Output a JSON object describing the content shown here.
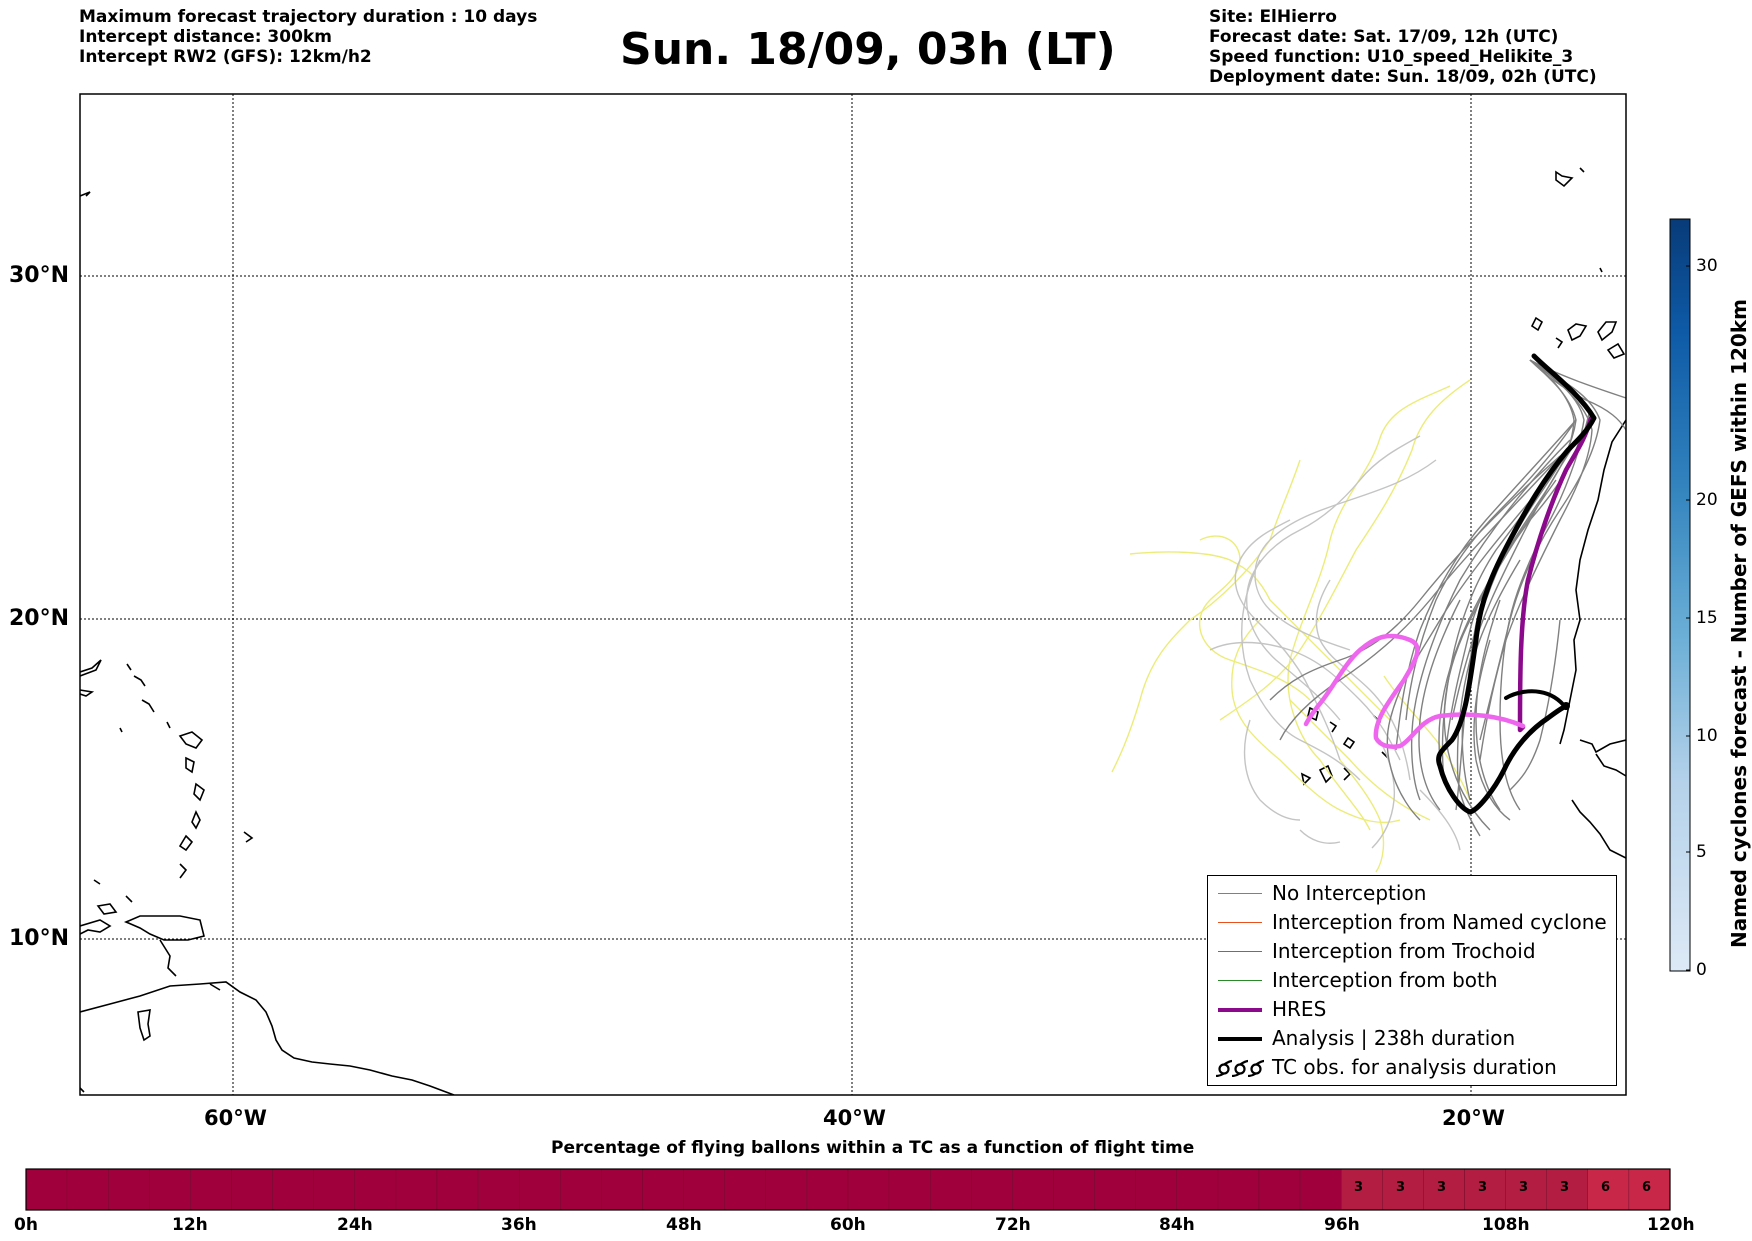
{
  "header": {
    "left_lines": [
      "Maximum forecast trajectory duration : 10 days",
      "Intercept distance: 300km",
      "Intercept RW2 (GFS):  12km/h2"
    ],
    "title": "Sun. 18/09, 03h (LT)",
    "right_lines": [
      "Site: ElHierro",
      "Forecast date: Sat. 17/09, 12h (UTC)",
      "Speed function: U10_speed_Helikite_3",
      "Deployment date: Sun. 18/09, 02h (UTC)"
    ]
  },
  "map": {
    "lat_labels": [
      "30°N",
      "20°N",
      "10°N"
    ],
    "lon_labels": [
      "60°W",
      "40°W",
      "20°W"
    ],
    "lat_range": [
      5,
      35
    ],
    "lon_range": [
      -65,
      -15
    ]
  },
  "legend": {
    "items": [
      {
        "label": "No Interception",
        "color": "#808080",
        "style": "thin"
      },
      {
        "label": "Interception from Named cyclone",
        "color": "#e8501e",
        "style": "thin"
      },
      {
        "label": "Interception from Trochoid",
        "color": "#7a7a1a",
        "style": "thin"
      },
      {
        "label": "Interception from both",
        "color": "#2a8a2a",
        "style": "thin"
      },
      {
        "label": "HRES",
        "color": "#8b0a8b",
        "style": "thick"
      },
      {
        "label": "Analysis | 238h duration",
        "color": "#000000",
        "style": "thick"
      },
      {
        "label": "TC obs. for analysis duration",
        "color": "#000000",
        "style": "cyclone-symbols"
      }
    ]
  },
  "colorbar": {
    "title": "Named cyclones forecast - Number of GEFS within 120km",
    "ticks": [
      "0",
      "5",
      "10",
      "15",
      "20",
      "30"
    ]
  },
  "strip": {
    "title": "Percentage of flying ballons within a TC as a function of flight time",
    "ticks": [
      "0h",
      "12h",
      "24h",
      "36h",
      "48h",
      "60h",
      "72h",
      "84h",
      "96h",
      "108h",
      "120h"
    ],
    "cell_values": [
      "3",
      "3",
      "3",
      "3",
      "3",
      "3",
      "6",
      "6"
    ]
  },
  "chart_data": {
    "type": "map",
    "title": "Sun. 18/09, 03h (LT)",
    "xlabel": "",
    "ylabel": "",
    "x_range": [
      -65,
      -15
    ],
    "y_range": [
      5,
      35
    ],
    "analysis_track": [
      [
        -18,
        26.9
      ],
      [
        -16.5,
        25.8
      ],
      [
        -17.1,
        24.8
      ],
      [
        -18.5,
        23
      ],
      [
        -20.5,
        20.3
      ],
      [
        -21.2,
        16.5
      ],
      [
        -21.7,
        14.1
      ],
      [
        -22.3,
        14.8
      ],
      [
        -20.6,
        16.8
      ],
      [
        -17.9,
        18.4
      ]
    ],
    "hres_track": [
      [
        -16.6,
        26.1
      ],
      [
        -17,
        24.7
      ],
      [
        -18.2,
        21.4
      ],
      [
        -18.3,
        19.5
      ],
      [
        -18.1,
        16.9
      ],
      [
        -19.6,
        17.3
      ],
      [
        -20.8,
        17.4
      ],
      [
        -22,
        16.1
      ],
      [
        -22.2,
        16.8
      ],
      [
        -22.8,
        19
      ],
      [
        -23.4,
        19.4
      ],
      [
        -24.6,
        18.5
      ],
      [
        -25.1,
        17.3
      ]
    ]
  }
}
